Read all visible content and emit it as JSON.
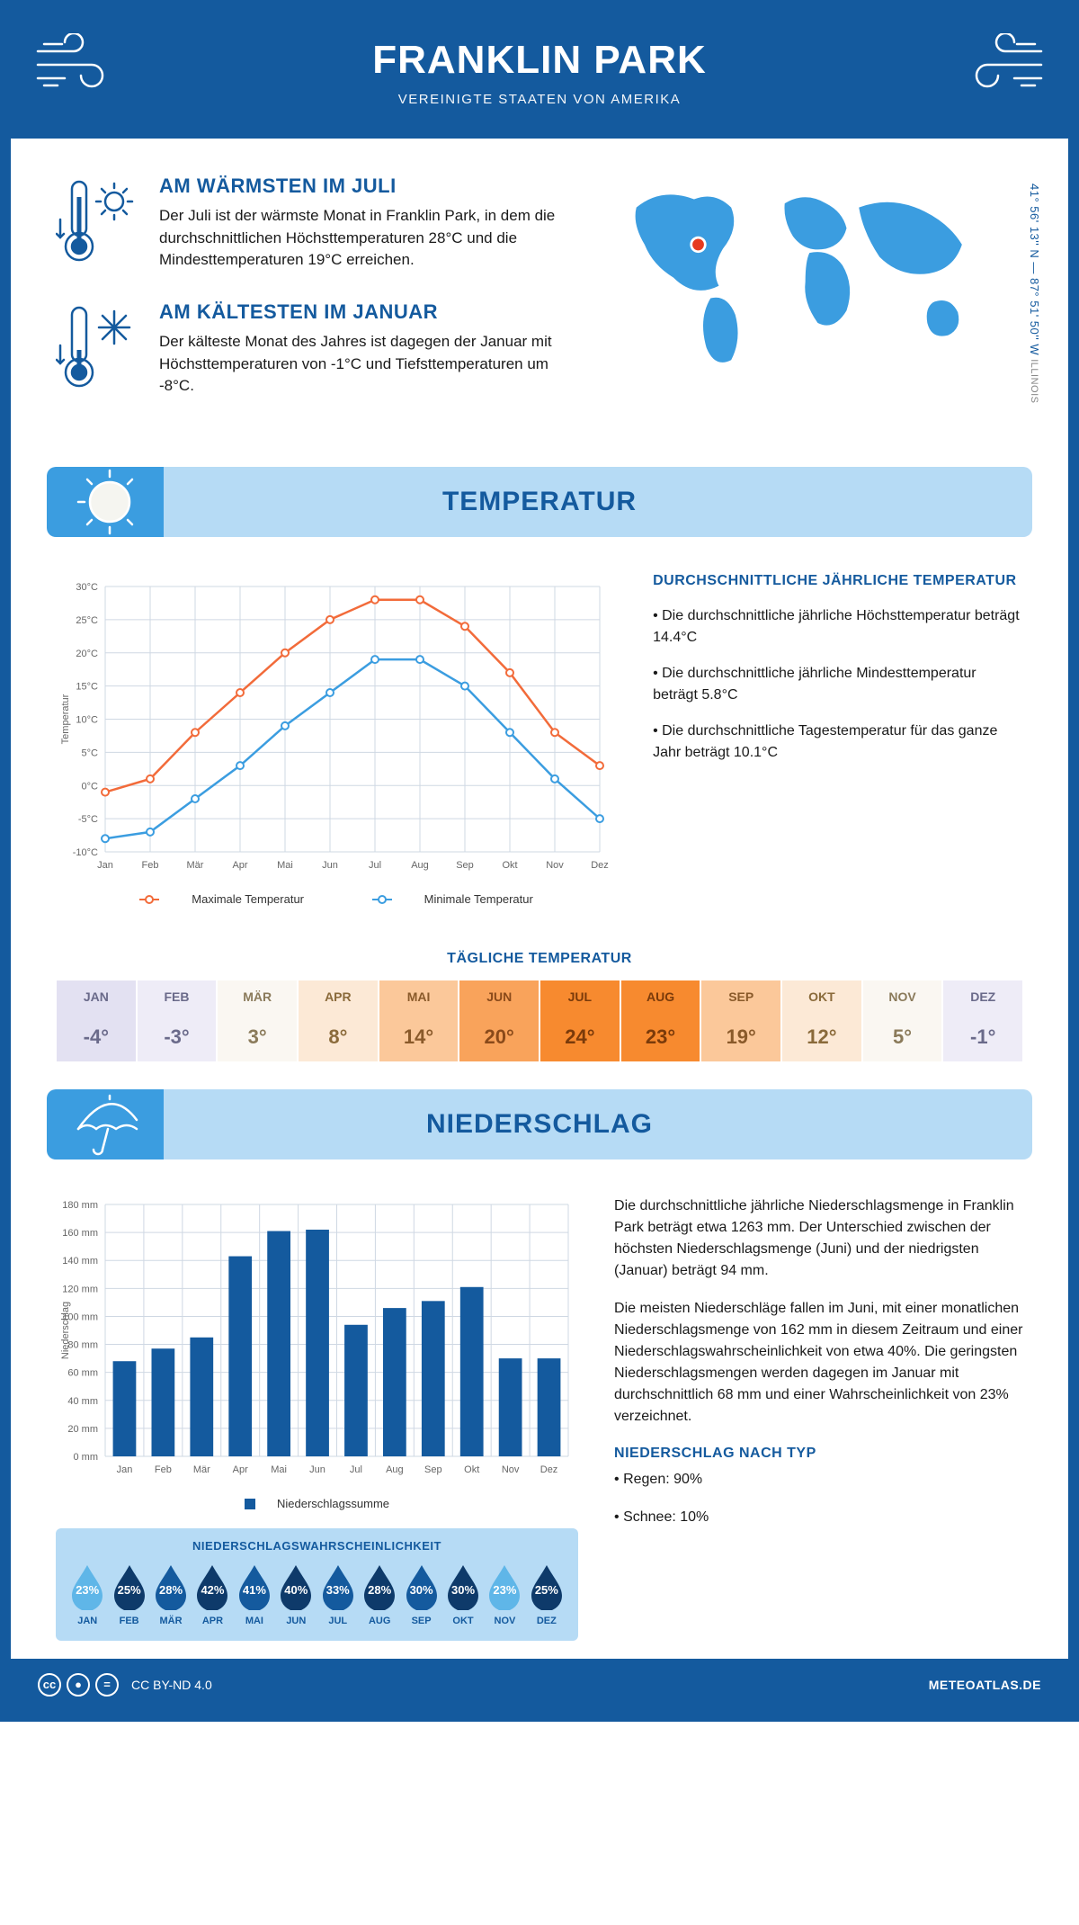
{
  "header": {
    "title": "FRANKLIN PARK",
    "subtitle": "VEREINIGTE STAATEN VON AMERIKA"
  },
  "coords": {
    "text": "41° 56' 13'' N — 87° 51' 50'' W",
    "region": "ILLINOIS"
  },
  "facts": {
    "warm": {
      "title": "AM WÄRMSTEN IM JULI",
      "text": "Der Juli ist der wärmste Monat in Franklin Park, in dem die durchschnittlichen Höchsttemperaturen 28°C und die Mindesttemperaturen 19°C erreichen."
    },
    "cold": {
      "title": "AM KÄLTESTEN IM JANUAR",
      "text": "Der kälteste Monat des Jahres ist dagegen der Januar mit Höchsttemperaturen von -1°C und Tiefsttemperaturen um -8°C."
    }
  },
  "sections": {
    "temp": "TEMPERATUR",
    "precip": "NIEDERSCHLAG"
  },
  "temp_chart": {
    "type": "line",
    "months": [
      "Jan",
      "Feb",
      "Mär",
      "Apr",
      "Mai",
      "Jun",
      "Jul",
      "Aug",
      "Sep",
      "Okt",
      "Nov",
      "Dez"
    ],
    "max_series": {
      "label": "Maximale Temperatur",
      "color": "#f26b3a",
      "values": [
        -1,
        1,
        8,
        14,
        20,
        25,
        28,
        28,
        24,
        17,
        8,
        3
      ]
    },
    "min_series": {
      "label": "Minimale Temperatur",
      "color": "#3b9de0",
      "values": [
        -8,
        -7,
        -2,
        3,
        9,
        14,
        19,
        19,
        15,
        8,
        1,
        -5
      ]
    },
    "ylabel": "Temperatur",
    "ylim": [
      -10,
      30
    ],
    "ytick_step": 5,
    "grid_color": "#cfd8e3",
    "line_width": 2.5,
    "marker_size": 4
  },
  "temp_info": {
    "heading": "DURCHSCHNITTLICHE JÄHRLICHE TEMPERATUR",
    "bullets": [
      "• Die durchschnittliche jährliche Höchsttemperatur beträgt 14.4°C",
      "• Die durchschnittliche jährliche Mindesttemperatur beträgt 5.8°C",
      "• Die durchschnittliche Tagestemperatur für das ganze Jahr beträgt 10.1°C"
    ]
  },
  "daily_temp": {
    "title": "TÄGLICHE TEMPERATUR",
    "months": [
      "JAN",
      "FEB",
      "MÄR",
      "APR",
      "MAI",
      "JUN",
      "JUL",
      "AUG",
      "SEP",
      "OKT",
      "NOV",
      "DEZ"
    ],
    "values": [
      "-4°",
      "-3°",
      "3°",
      "8°",
      "14°",
      "20°",
      "24°",
      "23°",
      "19°",
      "12°",
      "5°",
      "-1°"
    ],
    "colors": [
      "#e3e1f2",
      "#eeecf7",
      "#faf7f2",
      "#fce9d6",
      "#fbc89a",
      "#f9a35b",
      "#f78a2f",
      "#f78a2f",
      "#fbc89a",
      "#fce9d6",
      "#faf7f2",
      "#eeecf7"
    ],
    "value_colors": [
      "#6a6a8a",
      "#6a6a8a",
      "#8a7a5a",
      "#8a6a3a",
      "#8a5a2a",
      "#8a4a1a",
      "#7a3a0a",
      "#7a3a0a",
      "#8a5a2a",
      "#8a6a3a",
      "#8a7a5a",
      "#6a6a8a"
    ]
  },
  "precip_chart": {
    "type": "bar",
    "months": [
      "Jan",
      "Feb",
      "Mär",
      "Apr",
      "Mai",
      "Jun",
      "Jul",
      "Aug",
      "Sep",
      "Okt",
      "Nov",
      "Dez"
    ],
    "values": [
      68,
      77,
      85,
      143,
      161,
      162,
      94,
      106,
      111,
      121,
      70,
      70
    ],
    "bar_color": "#145a9e",
    "ylabel": "Niederschlag",
    "ylim": [
      0,
      180
    ],
    "ytick_step": 20,
    "grid_color": "#cfd8e3",
    "unit": "mm",
    "legend": "Niederschlagssumme"
  },
  "precip_text": {
    "p1": "Die durchschnittliche jährliche Niederschlagsmenge in Franklin Park beträgt etwa 1263 mm. Der Unterschied zwischen der höchsten Niederschlagsmenge (Juni) und der niedrigsten (Januar) beträgt 94 mm.",
    "p2": "Die meisten Niederschläge fallen im Juni, mit einer monatlichen Niederschlagsmenge von 162 mm in diesem Zeitraum und einer Niederschlagswahrscheinlichkeit von etwa 40%. Die geringsten Niederschlagsmengen werden dagegen im Januar mit durchschnittlich 68 mm und einer Wahrscheinlichkeit von 23% verzeichnet.",
    "type_heading": "NIEDERSCHLAG NACH TYP",
    "type_bullets": [
      "• Regen: 90%",
      "• Schnee: 10%"
    ]
  },
  "precip_prob": {
    "title": "NIEDERSCHLAGSWAHRSCHEINLICHKEIT",
    "months": [
      "JAN",
      "FEB",
      "MÄR",
      "APR",
      "MAI",
      "JUN",
      "JUL",
      "AUG",
      "SEP",
      "OKT",
      "NOV",
      "DEZ"
    ],
    "values": [
      "23%",
      "25%",
      "28%",
      "42%",
      "41%",
      "40%",
      "33%",
      "28%",
      "30%",
      "30%",
      "23%",
      "25%"
    ],
    "colors": [
      "#5fb6e8",
      "#0e3a6a",
      "#145a9e",
      "#0e3a6a",
      "#145a9e",
      "#0e3a6a",
      "#145a9e",
      "#0e3a6a",
      "#145a9e",
      "#0e3a6a",
      "#5fb6e8",
      "#0e3a6a"
    ]
  },
  "footer": {
    "license": "CC BY-ND 4.0",
    "site": "METEOATLAS.DE"
  }
}
